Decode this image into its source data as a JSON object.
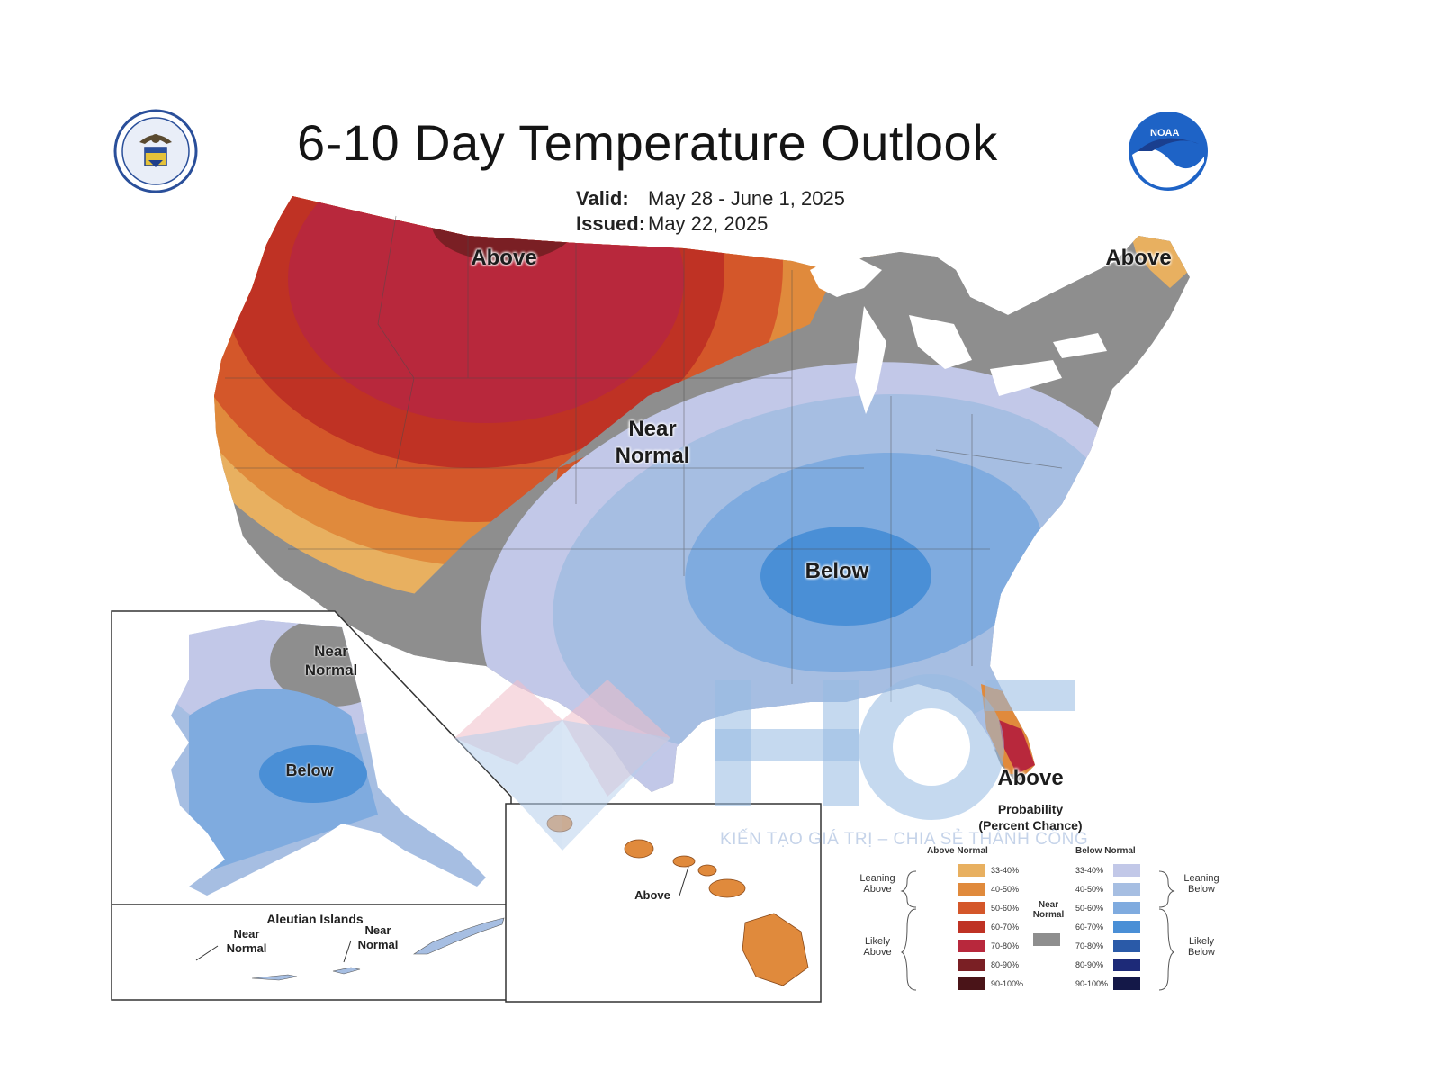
{
  "header": {
    "title": "6-10 Day Temperature Outlook",
    "valid_label": "Valid:",
    "valid_value": "May 28 - June 1, 2025",
    "issued_label": "Issued:",
    "issued_value": "May 22, 2025"
  },
  "logos": {
    "left_icon": "doc-seal-icon",
    "right_icon": "noaa-logo-icon",
    "right_text": "NOAA"
  },
  "map_labels": {
    "northwest": "Above",
    "northeast": "Above",
    "central_line1": "Near",
    "central_line2": "Normal",
    "southeast_center": "Below",
    "florida": "Above"
  },
  "alaska": {
    "near_line1": "Near",
    "near_line2": "Normal",
    "below": "Below",
    "aleutian_title": "Aleutian Islands",
    "aleutian_left1": "Near",
    "aleutian_left2": "Normal",
    "aleutian_right1": "Near",
    "aleutian_right2": "Normal"
  },
  "hawaii": {
    "label": "Above"
  },
  "legend": {
    "title1": "Probability",
    "title2": "(Percent Chance)",
    "above_header": "Above Normal",
    "below_header": "Below Normal",
    "leaning_above1": "Leaning",
    "leaning_above2": "Above",
    "likely_above1": "Likely",
    "likely_above2": "Above",
    "near_normal1": "Near",
    "near_normal2": "Normal",
    "leaning_below1": "Leaning",
    "leaning_below2": "Below",
    "likely_below1": "Likely",
    "likely_below2": "Below",
    "above_bins": [
      {
        "range": "33-40%",
        "color": "#e8b060"
      },
      {
        "range": "40-50%",
        "color": "#e08a3c"
      },
      {
        "range": "50-60%",
        "color": "#d4572a"
      },
      {
        "range": "60-70%",
        "color": "#bf3224"
      },
      {
        "range": "70-80%",
        "color": "#b8283c"
      },
      {
        "range": "80-90%",
        "color": "#7a1f24"
      },
      {
        "range": "90-100%",
        "color": "#4a1418"
      }
    ],
    "below_bins": [
      {
        "range": "33-40%",
        "color": "#c2c8e8"
      },
      {
        "range": "40-50%",
        "color": "#a6bee2"
      },
      {
        "range": "50-60%",
        "color": "#7fabdf"
      },
      {
        "range": "60-70%",
        "color": "#4a8fd6"
      },
      {
        "range": "70-80%",
        "color": "#2a5aa8"
      },
      {
        "range": "80-90%",
        "color": "#1d2a78"
      },
      {
        "range": "90-100%",
        "color": "#141848"
      }
    ],
    "near_color": "#8e8e8e"
  },
  "watermark": {
    "brand": "HCT",
    "tagline": "KIẾN TẠO GIÁ TRỊ – CHIA SẺ THÀNH CÔNG"
  }
}
